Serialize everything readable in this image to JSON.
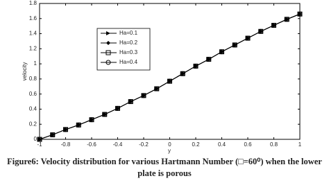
{
  "chart_data": {
    "type": "line",
    "x_label": "y",
    "y_label": "velocity",
    "caption": [
      "Figure6: Velocity distribution for various Hartmann Number (□=60⁰) when the lower",
      "plate is porous"
    ],
    "x": [
      -1,
      -0.9,
      -0.8,
      -0.7,
      -0.6,
      -0.5,
      -0.4,
      -0.3,
      -0.2,
      -0.1,
      0,
      0.1,
      0.2,
      0.3,
      0.4,
      0.5,
      0.6,
      0.7,
      0.8,
      0.9,
      1
    ],
    "series": [
      {
        "name": "Ha=0.1",
        "color": "#000000",
        "marker": "triangle-right",
        "values": [
          0,
          0.06,
          0.13,
          0.19,
          0.26,
          0.33,
          0.41,
          0.5,
          0.58,
          0.67,
          0.77,
          0.87,
          0.97,
          1.06,
          1.16,
          1.25,
          1.34,
          1.43,
          1.51,
          1.59,
          1.66
        ]
      },
      {
        "name": "Ha=0.2",
        "color": "#000000",
        "marker": "diamond",
        "values": [
          0,
          0.06,
          0.13,
          0.19,
          0.26,
          0.33,
          0.41,
          0.5,
          0.58,
          0.67,
          0.77,
          0.87,
          0.97,
          1.06,
          1.16,
          1.25,
          1.34,
          1.43,
          1.51,
          1.59,
          1.66
        ]
      },
      {
        "name": "Ha=0.3",
        "color": "#000000",
        "marker": "square",
        "values": [
          0,
          0.06,
          0.13,
          0.19,
          0.26,
          0.33,
          0.41,
          0.5,
          0.58,
          0.67,
          0.77,
          0.87,
          0.97,
          1.06,
          1.16,
          1.25,
          1.34,
          1.43,
          1.51,
          1.59,
          1.66
        ]
      },
      {
        "name": "Ha=0.4",
        "color": "#000000",
        "marker": "circle",
        "values": [
          0,
          0.06,
          0.13,
          0.19,
          0.26,
          0.33,
          0.41,
          0.5,
          0.58,
          0.67,
          0.77,
          0.87,
          0.97,
          1.06,
          1.16,
          1.25,
          1.34,
          1.43,
          1.51,
          1.59,
          1.66
        ]
      }
    ],
    "xlim": [
      -1,
      1
    ],
    "xticks": [
      -1,
      -0.8,
      -0.6,
      -0.4,
      -0.2,
      0,
      0.2,
      0.4,
      0.6,
      0.8,
      1
    ],
    "ylim": [
      0,
      1.8
    ],
    "yticks": [
      0,
      0.2,
      0.4,
      0.6,
      0.8,
      1,
      1.2,
      1.4,
      1.6,
      1.8
    ],
    "grid": false
  }
}
